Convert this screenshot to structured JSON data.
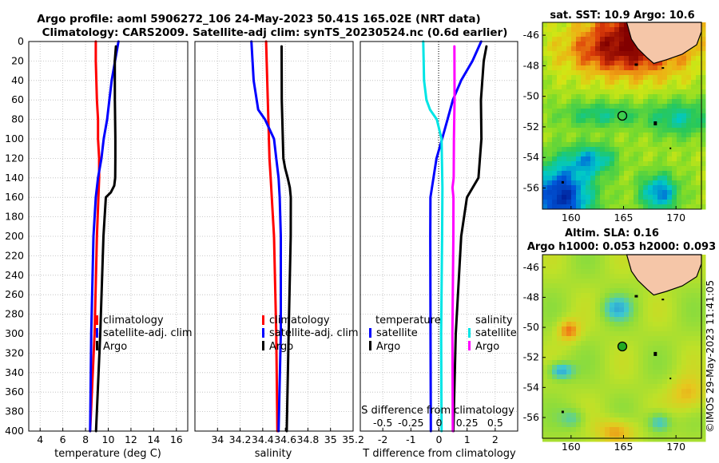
{
  "header": {
    "line1": "Argo profile: aoml 5906272_106 24-May-2023 50.41S 165.02E (NRT data)",
    "line2": "Climatology: CARS2009. Satellite-adj clim: synTS_20230524.nc (0.6d earlier)"
  },
  "watermark": "©IMOS 29-May-2023 11:41:05",
  "colors": {
    "climatology": "#ff0000",
    "satellite": "#0000ff",
    "argo": "#000000",
    "sal_satellite": "#00e5e5",
    "sal_climatology": "#ff00ff"
  },
  "chart_data": [
    {
      "id": "temperature",
      "type": "line",
      "xlabel": "temperature (deg C)",
      "ylabel": "",
      "xlim": [
        3,
        17
      ],
      "ylim": [
        400,
        0
      ],
      "xticks": [
        4,
        6,
        8,
        10,
        12,
        14,
        16
      ],
      "xtick_labels": [
        "4",
        "6",
        "8",
        "10",
        "12",
        "14",
        "16"
      ],
      "yticks": [
        0,
        20,
        40,
        60,
        80,
        100,
        120,
        140,
        160,
        180,
        200,
        220,
        240,
        260,
        280,
        300,
        320,
        340,
        360,
        380,
        400
      ],
      "grid": true,
      "legend": [
        "climatology",
        "satellite-adj. clim",
        "Argo"
      ],
      "series": [
        {
          "name": "climatology",
          "color": "#ff0000",
          "depth": [
            0,
            20,
            60,
            80,
            100,
            120,
            140,
            200,
            300,
            400
          ],
          "values": [
            8.9,
            8.9,
            9.0,
            9.1,
            9.1,
            9.2,
            9.2,
            9.0,
            8.8,
            8.4
          ]
        },
        {
          "name": "satellite-adj. clim",
          "color": "#0000ff",
          "depth": [
            0,
            20,
            40,
            60,
            80,
            100,
            120,
            140,
            160,
            200,
            300,
            400
          ],
          "values": [
            10.9,
            10.6,
            10.3,
            10.1,
            9.9,
            9.6,
            9.4,
            9.1,
            8.9,
            8.7,
            8.5,
            8.4
          ]
        },
        {
          "name": "Argo",
          "color": "#000000",
          "depth": [
            5,
            20,
            60,
            100,
            120,
            140,
            148,
            155,
            160,
            200,
            300,
            400
          ],
          "values": [
            10.7,
            10.6,
            10.6,
            10.6,
            10.6,
            10.6,
            10.5,
            10.2,
            9.8,
            9.6,
            9.3,
            8.9
          ]
        }
      ]
    },
    {
      "id": "salinity",
      "type": "line",
      "xlabel": "salinity",
      "ylabel": "",
      "xlim": [
        33.8,
        35.2
      ],
      "ylim": [
        400,
        0
      ],
      "xticks": [
        34,
        34.2,
        34.4,
        34.6,
        34.8,
        35,
        35.2
      ],
      "xtick_labels": [
        "34",
        "34.2",
        "34.4",
        "34.6",
        "34.8",
        "35",
        "35.2"
      ],
      "grid": true,
      "legend": [
        "climatology",
        "satellite-adj. clim",
        "Argo"
      ],
      "series": [
        {
          "name": "climatology",
          "color": "#ff0000",
          "depth": [
            0,
            40,
            80,
            120,
            140,
            160,
            200,
            300,
            400
          ],
          "values": [
            34.43,
            34.44,
            34.45,
            34.46,
            34.47,
            34.48,
            34.5,
            34.52,
            34.53
          ]
        },
        {
          "name": "satellite-adj. clim",
          "color": "#0000ff",
          "depth": [
            0,
            40,
            70,
            80,
            100,
            120,
            140,
            160,
            200,
            300,
            400
          ],
          "values": [
            34.3,
            34.32,
            34.36,
            34.42,
            34.5,
            34.52,
            34.54,
            34.55,
            34.56,
            34.56,
            34.54
          ]
        },
        {
          "name": "Argo",
          "color": "#000000",
          "depth": [
            5,
            60,
            120,
            130,
            140,
            150,
            160,
            200,
            300,
            400
          ],
          "values": [
            34.57,
            34.57,
            34.58,
            34.6,
            34.62,
            34.64,
            34.65,
            34.65,
            34.63,
            34.61
          ]
        }
      ]
    },
    {
      "id": "difference",
      "type": "line",
      "xlabel": "T difference from climatology",
      "xlabel2": "S difference from climatology",
      "xlim": [
        -2.8,
        2.8
      ],
      "ylim": [
        400,
        0
      ],
      "xticks": [
        -2,
        -1,
        0,
        1,
        2
      ],
      "xtick_labels": [
        "-2",
        "-1",
        "0",
        "1",
        "2"
      ],
      "sticks": [
        -0.5,
        -0.25,
        0,
        0.25,
        0.5
      ],
      "stick_labels": [
        "-0.5",
        "-0.25",
        "0",
        "0.25",
        "0.5"
      ],
      "s_scale": 4,
      "grid": true,
      "legend_left_title": "temperature",
      "legend_right_title": "salinity",
      "legend": [
        "satellite",
        "Argo",
        "satellite",
        "Argo"
      ],
      "series": [
        {
          "name": "T satellite",
          "color": "#0000ff",
          "depth": [
            0,
            20,
            40,
            60,
            80,
            100,
            120,
            140,
            160,
            200,
            300,
            400
          ],
          "values": [
            1.5,
            1.2,
            0.8,
            0.5,
            0.3,
            0.1,
            -0.1,
            -0.2,
            -0.3,
            -0.3,
            -0.3,
            -0.3
          ]
        },
        {
          "name": "T Argo",
          "color": "#000000",
          "depth": [
            5,
            20,
            60,
            100,
            140,
            160,
            200,
            300,
            400
          ],
          "values": [
            1.7,
            1.6,
            1.5,
            1.5,
            1.4,
            1.0,
            0.8,
            0.6,
            0.5
          ]
        },
        {
          "name": "S satellite",
          "color": "#00e5e5",
          "depth": [
            0,
            40,
            60,
            70,
            80,
            100,
            150,
            200,
            300,
            400
          ],
          "values": [
            -0.14,
            -0.13,
            -0.11,
            -0.08,
            -0.02,
            0.02,
            0.03,
            0.03,
            0.02,
            0.02
          ]
        },
        {
          "name": "S Argo",
          "color": "#ff00ff",
          "depth": [
            5,
            60,
            100,
            140,
            150,
            160,
            200,
            300,
            400
          ],
          "values": [
            0.14,
            0.14,
            0.13,
            0.13,
            0.12,
            0.13,
            0.13,
            0.12,
            0.12
          ]
        }
      ]
    }
  ],
  "maps": [
    {
      "id": "sst-map",
      "title": "sat. SST: 10.9 Argo: 10.6",
      "ytick_labels": [
        "-46",
        "-48",
        "-50",
        "-52",
        "-54",
        "-56"
      ],
      "xtick_labels": [
        "160",
        "165",
        "170"
      ],
      "colormap": "sst"
    },
    {
      "id": "sla-map",
      "title1": "Altim. SLA: 0.16",
      "title2": "Argo h1000: 0.053 h2000: 0.093",
      "ytick_labels": [
        "-46",
        "-48",
        "-50",
        "-52",
        "-54",
        "-56"
      ],
      "xtick_labels": [
        "160",
        "165",
        "170"
      ],
      "colormap": "sla"
    }
  ]
}
